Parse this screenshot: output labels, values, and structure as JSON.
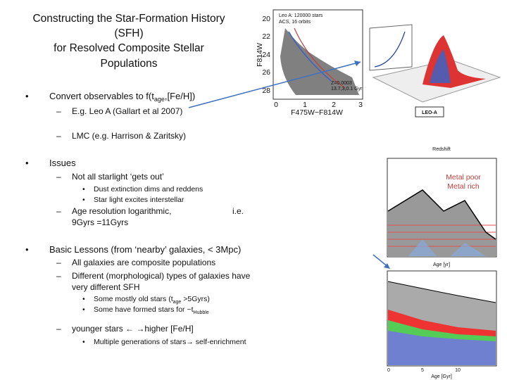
{
  "title": {
    "lines": [
      "Constructing the Star-Formation History",
      "(SFH)",
      "for Resolved Composite Stellar",
      "Populations"
    ]
  },
  "bullets": [
    {
      "text": {
        "pre": "Convert observables to f(t",
        "sub": "age",
        "post": ",[Fe/H])"
      },
      "items": [
        {
          "text": "E.g. Leo A (Gallart et al 2007)"
        },
        {
          "text": "LMC (e.g. Harrison & Zaritsky)"
        }
      ]
    },
    {
      "text": "Issues",
      "items": [
        {
          "text": "Not all starlight ‘gets out’",
          "items": [
            "Dust extinction dims and reddens",
            "Star light excites interstellar"
          ]
        },
        {
          "lines": [
            "Age resolution logarithmic,",
            "9Gyrs =11Gyrs"
          ],
          "aside": "i.e."
        }
      ]
    },
    {
      "text": "Basic Lessons (from ‘nearby’ galaxies, < 3Mpc)",
      "items": [
        {
          "text": "All galaxies are composite populations"
        },
        {
          "lines": [
            "Different (morphological) types of galaxies have",
            "very different SFH"
          ],
          "items": [
            {
              "pre": "Some mostly old stars (t",
              "sub": "age",
              "post": " >5Gyrs)"
            },
            {
              "pre": "Some have formed stars for ~t",
              "sub": "Hubble",
              "post": ""
            }
          ]
        },
        {
          "text": "younger stars ← →higher [Fe/H]",
          "items": [
            "Multiple generations of stars→ self-enrichment"
          ]
        }
      ]
    }
  ],
  "figures": {
    "cmd": {
      "labels": [
        "Leo A: 120000 stars",
        "ACS, 16 orbits",
        "Z=0.0003",
        "13.7,3,0.1 Gyr"
      ],
      "y_ticks": [
        "20",
        "22",
        "24",
        "26",
        "28"
      ],
      "x_ticks": [
        "0",
        "1",
        "2",
        "3"
      ],
      "y_label": "F814W",
      "x_label": "F475W−F814W"
    },
    "surface": {
      "tag": "LEO-A"
    },
    "sfh": {
      "legend": [
        "Metal poor",
        "Metal rich"
      ],
      "x_label": "Age [yr]",
      "top_label": "Redshift"
    },
    "sfr": {
      "x_label": "Age [Gyr]",
      "x_ticks": [
        "0",
        "5",
        "10"
      ]
    }
  }
}
